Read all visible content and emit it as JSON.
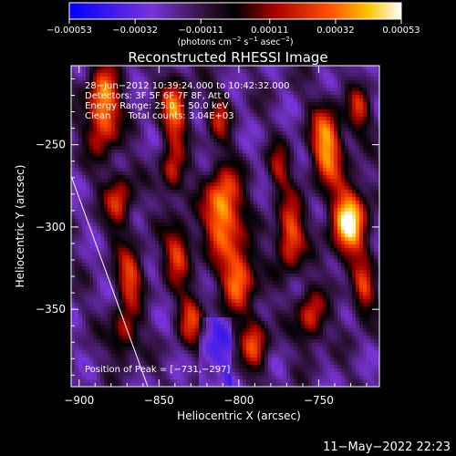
{
  "chart_data": {
    "type": "heatmap",
    "title": "Reconstructed RHESSI Image",
    "xlabel": "Heliocentric X (arcsec)",
    "ylabel": "Heliocentric Y (arcsec)",
    "xlim": [
      -905,
      -712
    ],
    "ylim": [
      -397,
      -202
    ],
    "x_ticks": [
      -900,
      -850,
      -800,
      -750
    ],
    "x_tick_labels": [
      "−900",
      "−850",
      "−800",
      "−750"
    ],
    "y_ticks": [
      -250,
      -300,
      -350
    ],
    "y_tick_labels": [
      "−250",
      "−300",
      "−350"
    ],
    "colorbar": {
      "min": -0.00053,
      "max": 0.00053,
      "ticks": [
        -0.00053,
        -0.00032,
        -0.00011,
        0.00011,
        0.00032,
        0.00053
      ],
      "tick_labels": [
        "−0.00053",
        "−0.00032",
        "−0.00011",
        "0.00011",
        "0.00032",
        "0.00053"
      ],
      "unit_prefix": "(photons cm",
      "unit_sup1": "−2",
      "unit_mid1": " s",
      "unit_sup2": "−1",
      "unit_mid2": " asec",
      "unit_sup3": "−2",
      "unit_suffix": ")"
    },
    "annotations": [
      "28−Jun−2012 10:39:24.000 to 10:42:32.000",
      "Detectors: 3F 5F 6F 7F 8F, Att 0",
      "Energy Range: 25.0 − 50.0 keV",
      "Clean      Total counts: 3.04E+03"
    ],
    "peak_label": "Position of Peak = [−731,−297]",
    "peak": [
      -731,
      -297
    ],
    "limb_line": [
      [
        -905,
        -269
      ],
      [
        -857,
        -397
      ]
    ],
    "sources": [
      {
        "x": -885,
        "y": -228,
        "amp": 0.9,
        "sx": 7,
        "sy": 18
      },
      {
        "x": -875,
        "y": -285,
        "amp": 0.6,
        "sx": 6,
        "sy": 12
      },
      {
        "x": -868,
        "y": -330,
        "amp": 0.65,
        "sx": 6,
        "sy": 12
      },
      {
        "x": -872,
        "y": -365,
        "amp": 0.55,
        "sx": 6,
        "sy": 10
      },
      {
        "x": -840,
        "y": -230,
        "amp": 0.75,
        "sx": 6,
        "sy": 14
      },
      {
        "x": -842,
        "y": -268,
        "amp": 0.55,
        "sx": 5,
        "sy": 10
      },
      {
        "x": -838,
        "y": -315,
        "amp": 0.65,
        "sx": 6,
        "sy": 12
      },
      {
        "x": -830,
        "y": -355,
        "amp": 0.55,
        "sx": 6,
        "sy": 12
      },
      {
        "x": -810,
        "y": -290,
        "amp": 0.95,
        "sx": 8,
        "sy": 18
      },
      {
        "x": -800,
        "y": -330,
        "amp": 0.8,
        "sx": 7,
        "sy": 14
      },
      {
        "x": -790,
        "y": -370,
        "amp": 0.6,
        "sx": 6,
        "sy": 12
      },
      {
        "x": -812,
        "y": -232,
        "amp": 0.45,
        "sx": 5,
        "sy": 10
      },
      {
        "x": -768,
        "y": -305,
        "amp": 0.75,
        "sx": 6,
        "sy": 15
      },
      {
        "x": -775,
        "y": -265,
        "amp": 0.45,
        "sx": 5,
        "sy": 10
      },
      {
        "x": -755,
        "y": -355,
        "amp": 0.6,
        "sx": 6,
        "sy": 12
      },
      {
        "x": -745,
        "y": -250,
        "amp": 0.85,
        "sx": 7,
        "sy": 16
      },
      {
        "x": -731,
        "y": -297,
        "amp": 1.0,
        "sx": 8,
        "sy": 16
      },
      {
        "x": -722,
        "y": -340,
        "amp": 0.55,
        "sx": 5,
        "sy": 12
      },
      {
        "x": -725,
        "y": -230,
        "amp": 0.5,
        "sx": 5,
        "sy": 10
      }
    ]
  },
  "timestamp": "11−May−2022 22:23"
}
